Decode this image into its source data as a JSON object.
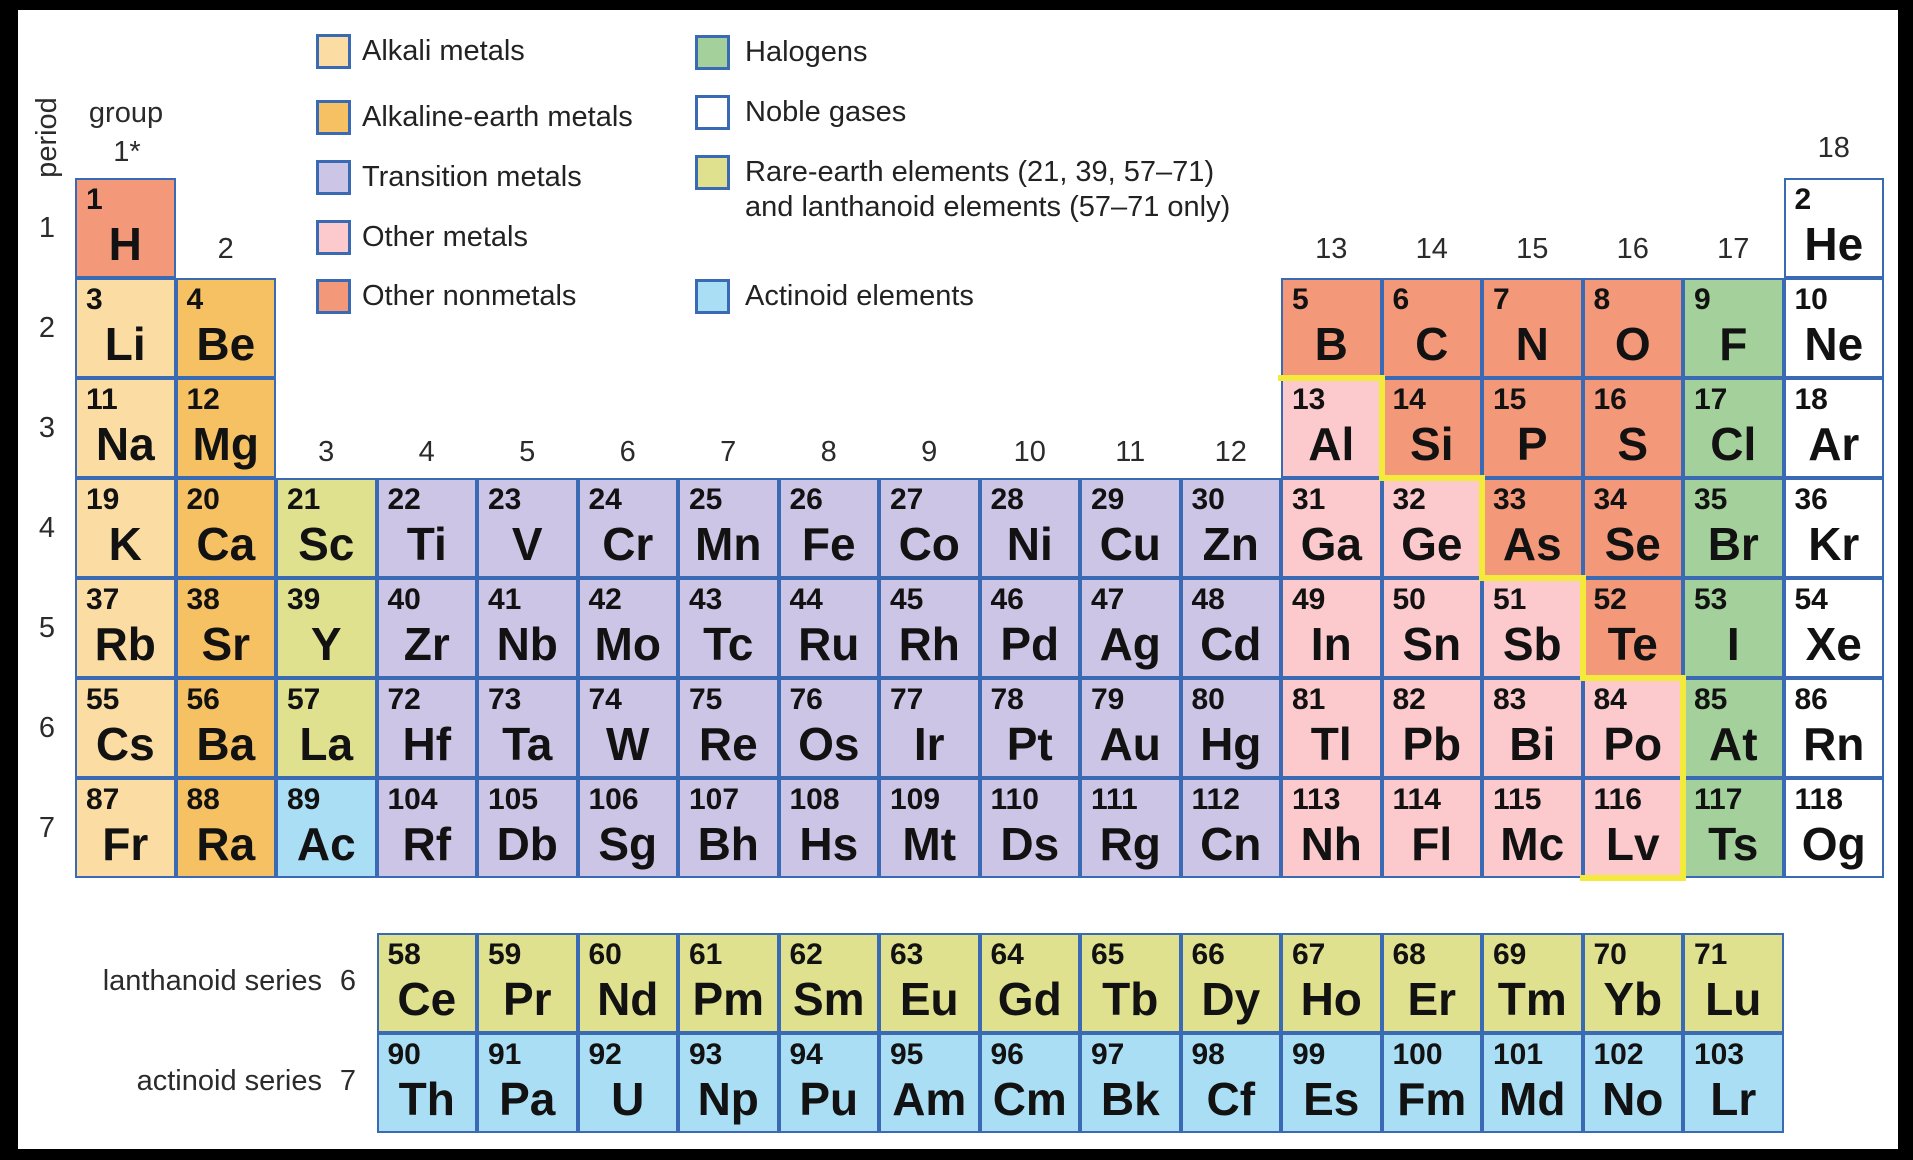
{
  "colors": {
    "frame": "#000000",
    "background": "#ffffff",
    "cell_border": "#3a6ab4",
    "staircase_line": "#f3ea3c",
    "text": "#121212"
  },
  "categories": {
    "alkali": {
      "name": "Alkali metals",
      "color": "#fbdda4"
    },
    "alkaline": {
      "name": "Alkaline-earth metals",
      "color": "#f6c162"
    },
    "transition": {
      "name": "Transition metals",
      "color": "#cdc5e5"
    },
    "other": {
      "name": "Other metals",
      "color": "#fccacd"
    },
    "nonmetal": {
      "name": "Other nonmetals",
      "color": "#f4987a"
    },
    "halogen": {
      "name": "Halogens",
      "color": "#a3d09b"
    },
    "noble": {
      "name": "Noble gases",
      "color": "#ffffff"
    },
    "rare": {
      "name": "Rare-earth elements",
      "color": "#e0e18f"
    },
    "actinoid": {
      "name": "Actinoid elements",
      "color": "#aadef4"
    }
  },
  "legend": {
    "left": [
      {
        "cat": "alkali",
        "lines": [
          "Alkali metals"
        ]
      },
      {
        "cat": "alkaline",
        "lines": [
          "Alkaline-earth metals"
        ]
      },
      {
        "cat": "transition",
        "lines": [
          "Transition metals"
        ]
      },
      {
        "cat": "other",
        "lines": [
          "Other metals"
        ]
      },
      {
        "cat": "nonmetal",
        "lines": [
          "Other nonmetals"
        ]
      }
    ],
    "right": [
      {
        "cat": "halogen",
        "lines": [
          "Halogens"
        ]
      },
      {
        "cat": "noble",
        "lines": [
          "Noble gases"
        ]
      },
      {
        "cat": "rare",
        "lines": [
          "Rare-earth elements (21, 39, 57–71)",
          "and lanthanoid elements (57–71 only)"
        ]
      },
      {
        "cat": "actinoid",
        "lines": [
          "Actinoid elements"
        ]
      }
    ]
  },
  "axis": {
    "period_label": "period",
    "group_label": "group",
    "group1_label": "1*",
    "periods": [
      "1",
      "2",
      "3",
      "4",
      "5",
      "6",
      "7"
    ],
    "group_headers": [
      {
        "label": "2",
        "col": 2,
        "tier": "band1"
      },
      {
        "label": "3",
        "col": 3,
        "tier": "band3"
      },
      {
        "label": "4",
        "col": 4,
        "tier": "band3"
      },
      {
        "label": "5",
        "col": 5,
        "tier": "band3"
      },
      {
        "label": "6",
        "col": 6,
        "tier": "band3"
      },
      {
        "label": "7",
        "col": 7,
        "tier": "band3"
      },
      {
        "label": "8",
        "col": 8,
        "tier": "band3"
      },
      {
        "label": "9",
        "col": 9,
        "tier": "band3"
      },
      {
        "label": "10",
        "col": 10,
        "tier": "band3"
      },
      {
        "label": "11",
        "col": 11,
        "tier": "band3"
      },
      {
        "label": "12",
        "col": 12,
        "tier": "band3"
      },
      {
        "label": "13",
        "col": 13,
        "tier": "band1"
      },
      {
        "label": "14",
        "col": 14,
        "tier": "band1"
      },
      {
        "label": "15",
        "col": 15,
        "tier": "band1"
      },
      {
        "label": "16",
        "col": 16,
        "tier": "band1"
      },
      {
        "label": "17",
        "col": 17,
        "tier": "band1"
      },
      {
        "label": "18",
        "col": 18,
        "tier": "top"
      }
    ]
  },
  "series": {
    "lanthanoid": {
      "label": "lanthanoid series",
      "period": "6"
    },
    "actinoid": {
      "label": "actinoid series",
      "period": "7"
    }
  },
  "element_fields": [
    "atomic_number",
    "symbol",
    "category",
    "period",
    "group"
  ],
  "elements": [
    [
      1,
      "H",
      "nonmetal",
      1,
      1
    ],
    [
      2,
      "He",
      "noble",
      1,
      18
    ],
    [
      3,
      "Li",
      "alkali",
      2,
      1
    ],
    [
      4,
      "Be",
      "alkaline",
      2,
      2
    ],
    [
      5,
      "B",
      "nonmetal",
      2,
      13
    ],
    [
      6,
      "C",
      "nonmetal",
      2,
      14
    ],
    [
      7,
      "N",
      "nonmetal",
      2,
      15
    ],
    [
      8,
      "O",
      "nonmetal",
      2,
      16
    ],
    [
      9,
      "F",
      "halogen",
      2,
      17
    ],
    [
      10,
      "Ne",
      "noble",
      2,
      18
    ],
    [
      11,
      "Na",
      "alkali",
      3,
      1
    ],
    [
      12,
      "Mg",
      "alkaline",
      3,
      2
    ],
    [
      13,
      "Al",
      "other",
      3,
      13
    ],
    [
      14,
      "Si",
      "nonmetal",
      3,
      14
    ],
    [
      15,
      "P",
      "nonmetal",
      3,
      15
    ],
    [
      16,
      "S",
      "nonmetal",
      3,
      16
    ],
    [
      17,
      "Cl",
      "halogen",
      3,
      17
    ],
    [
      18,
      "Ar",
      "noble",
      3,
      18
    ],
    [
      19,
      "K",
      "alkali",
      4,
      1
    ],
    [
      20,
      "Ca",
      "alkaline",
      4,
      2
    ],
    [
      21,
      "Sc",
      "rare",
      4,
      3
    ],
    [
      22,
      "Ti",
      "transition",
      4,
      4
    ],
    [
      23,
      "V",
      "transition",
      4,
      5
    ],
    [
      24,
      "Cr",
      "transition",
      4,
      6
    ],
    [
      25,
      "Mn",
      "transition",
      4,
      7
    ],
    [
      26,
      "Fe",
      "transition",
      4,
      8
    ],
    [
      27,
      "Co",
      "transition",
      4,
      9
    ],
    [
      28,
      "Ni",
      "transition",
      4,
      10
    ],
    [
      29,
      "Cu",
      "transition",
      4,
      11
    ],
    [
      30,
      "Zn",
      "transition",
      4,
      12
    ],
    [
      31,
      "Ga",
      "other",
      4,
      13
    ],
    [
      32,
      "Ge",
      "other",
      4,
      14
    ],
    [
      33,
      "As",
      "nonmetal",
      4,
      15
    ],
    [
      34,
      "Se",
      "nonmetal",
      4,
      16
    ],
    [
      35,
      "Br",
      "halogen",
      4,
      17
    ],
    [
      36,
      "Kr",
      "noble",
      4,
      18
    ],
    [
      37,
      "Rb",
      "alkali",
      5,
      1
    ],
    [
      38,
      "Sr",
      "alkaline",
      5,
      2
    ],
    [
      39,
      "Y",
      "rare",
      5,
      3
    ],
    [
      40,
      "Zr",
      "transition",
      5,
      4
    ],
    [
      41,
      "Nb",
      "transition",
      5,
      5
    ],
    [
      42,
      "Mo",
      "transition",
      5,
      6
    ],
    [
      43,
      "Tc",
      "transition",
      5,
      7
    ],
    [
      44,
      "Ru",
      "transition",
      5,
      8
    ],
    [
      45,
      "Rh",
      "transition",
      5,
      9
    ],
    [
      46,
      "Pd",
      "transition",
      5,
      10
    ],
    [
      47,
      "Ag",
      "transition",
      5,
      11
    ],
    [
      48,
      "Cd",
      "transition",
      5,
      12
    ],
    [
      49,
      "In",
      "other",
      5,
      13
    ],
    [
      50,
      "Sn",
      "other",
      5,
      14
    ],
    [
      51,
      "Sb",
      "other",
      5,
      15
    ],
    [
      52,
      "Te",
      "nonmetal",
      5,
      16
    ],
    [
      53,
      "I",
      "halogen",
      5,
      17
    ],
    [
      54,
      "Xe",
      "noble",
      5,
      18
    ],
    [
      55,
      "Cs",
      "alkali",
      6,
      1
    ],
    [
      56,
      "Ba",
      "alkaline",
      6,
      2
    ],
    [
      57,
      "La",
      "rare",
      6,
      3
    ],
    [
      72,
      "Hf",
      "transition",
      6,
      4
    ],
    [
      73,
      "Ta",
      "transition",
      6,
      5
    ],
    [
      74,
      "W",
      "transition",
      6,
      6
    ],
    [
      75,
      "Re",
      "transition",
      6,
      7
    ],
    [
      76,
      "Os",
      "transition",
      6,
      8
    ],
    [
      77,
      "Ir",
      "transition",
      6,
      9
    ],
    [
      78,
      "Pt",
      "transition",
      6,
      10
    ],
    [
      79,
      "Au",
      "transition",
      6,
      11
    ],
    [
      80,
      "Hg",
      "transition",
      6,
      12
    ],
    [
      81,
      "Tl",
      "other",
      6,
      13
    ],
    [
      82,
      "Pb",
      "other",
      6,
      14
    ],
    [
      83,
      "Bi",
      "other",
      6,
      15
    ],
    [
      84,
      "Po",
      "other",
      6,
      16
    ],
    [
      85,
      "At",
      "halogen",
      6,
      17
    ],
    [
      86,
      "Rn",
      "noble",
      6,
      18
    ],
    [
      87,
      "Fr",
      "alkali",
      7,
      1
    ],
    [
      88,
      "Ra",
      "alkaline",
      7,
      2
    ],
    [
      89,
      "Ac",
      "actinoid",
      7,
      3
    ],
    [
      104,
      "Rf",
      "transition",
      7,
      4
    ],
    [
      105,
      "Db",
      "transition",
      7,
      5
    ],
    [
      106,
      "Sg",
      "transition",
      7,
      6
    ],
    [
      107,
      "Bh",
      "transition",
      7,
      7
    ],
    [
      108,
      "Hs",
      "transition",
      7,
      8
    ],
    [
      109,
      "Mt",
      "transition",
      7,
      9
    ],
    [
      110,
      "Ds",
      "transition",
      7,
      10
    ],
    [
      111,
      "Rg",
      "transition",
      7,
      11
    ],
    [
      112,
      "Cn",
      "transition",
      7,
      12
    ],
    [
      113,
      "Nh",
      "other",
      7,
      13
    ],
    [
      114,
      "Fl",
      "other",
      7,
      14
    ],
    [
      115,
      "Mc",
      "other",
      7,
      15
    ],
    [
      116,
      "Lv",
      "other",
      7,
      16
    ],
    [
      117,
      "Ts",
      "halogen",
      7,
      17
    ],
    [
      118,
      "Og",
      "noble",
      7,
      18
    ]
  ],
  "series_fields": [
    "atomic_number",
    "symbol"
  ],
  "lanthanoids": [
    [
      58,
      "Ce"
    ],
    [
      59,
      "Pr"
    ],
    [
      60,
      "Nd"
    ],
    [
      61,
      "Pm"
    ],
    [
      62,
      "Sm"
    ],
    [
      63,
      "Eu"
    ],
    [
      64,
      "Gd"
    ],
    [
      65,
      "Tb"
    ],
    [
      66,
      "Dy"
    ],
    [
      67,
      "Ho"
    ],
    [
      68,
      "Er"
    ],
    [
      69,
      "Tm"
    ],
    [
      70,
      "Yb"
    ],
    [
      71,
      "Lu"
    ]
  ],
  "actinoids": [
    [
      90,
      "Th"
    ],
    [
      91,
      "Pa"
    ],
    [
      92,
      "U"
    ],
    [
      93,
      "Np"
    ],
    [
      94,
      "Pu"
    ],
    [
      95,
      "Am"
    ],
    [
      96,
      "Cm"
    ],
    [
      97,
      "Bk"
    ],
    [
      98,
      "Cf"
    ],
    [
      99,
      "Es"
    ],
    [
      100,
      "Fm"
    ],
    [
      101,
      "Md"
    ],
    [
      102,
      "No"
    ],
    [
      103,
      "Lr"
    ]
  ]
}
